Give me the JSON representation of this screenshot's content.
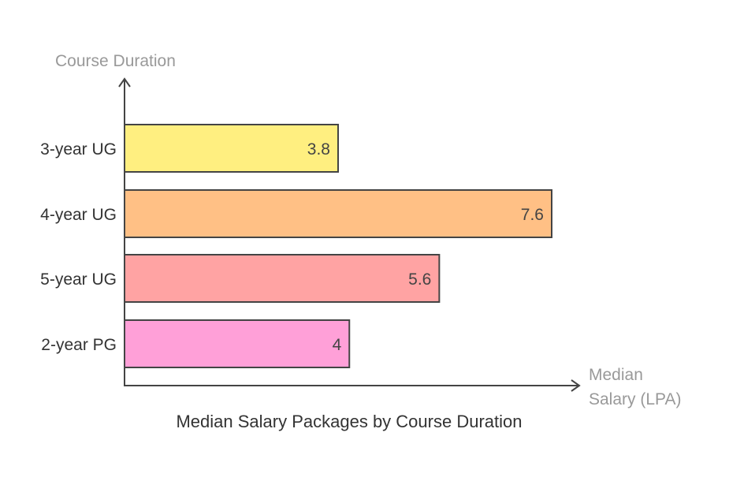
{
  "chart_data": {
    "type": "bar",
    "orientation": "horizontal",
    "title": "Median Salary Packages by Course Duration",
    "ylabel": "Course Duration",
    "xlabel_lines": [
      "Median",
      "Salary (LPA)"
    ],
    "categories": [
      "3-year UG",
      "4-year UG",
      "5-year UG",
      "2-year PG"
    ],
    "values": [
      3.8,
      7.6,
      5.6,
      4
    ],
    "value_labels": [
      "3.8",
      "7.6",
      "5.6",
      "4"
    ],
    "colors": [
      "#FFEF80",
      "#FFC085",
      "#FFA3A3",
      "#FFA0D8"
    ],
    "grid": false,
    "xlim": [
      0,
      7.6
    ]
  }
}
